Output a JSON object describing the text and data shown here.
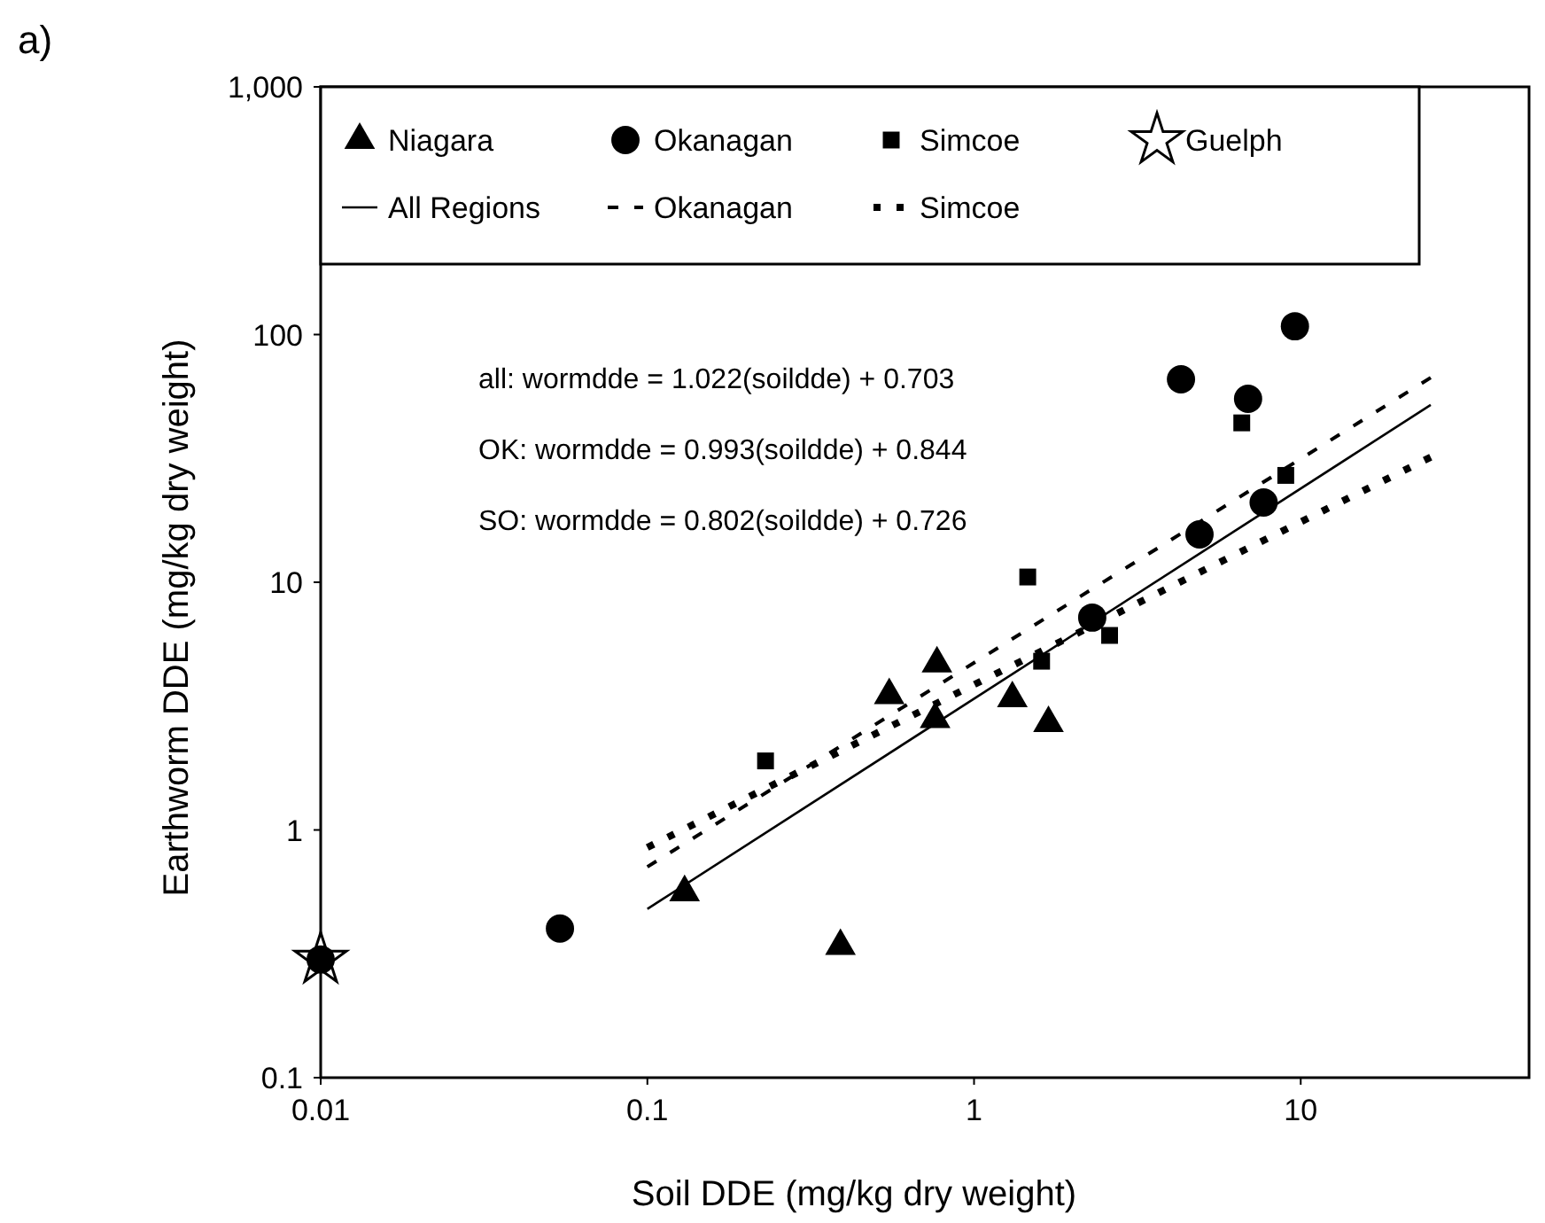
{
  "chart_data": {
    "type": "scatter",
    "title": "a)",
    "xlabel": "Soil DDE (mg/kg dry weight)",
    "ylabel": "Earthworm DDE (mg/kg dry weight)",
    "log": "xy",
    "xlim": [
      0.01,
      50
    ],
    "ylim": [
      0.1,
      1000
    ],
    "xticks": [
      0.01,
      0.1,
      1,
      10
    ],
    "yticks": [
      0.1,
      1,
      10,
      100,
      {
        "value": 1000,
        "label": "1,000"
      }
    ],
    "legend": "top",
    "grid": false,
    "annotations": [
      "all: wormdde = 1.022(soildde) + 0.703",
      "OK: wormdde = 0.993(soildde) + 0.844",
      "SO: wormdde = 0.802(soildde) + 0.726"
    ],
    "series": [
      {
        "name": "Niagara",
        "marker": "triangle",
        "color": "#000000",
        "x": [
          0.13,
          0.39,
          0.55,
          0.77,
          0.76,
          1.31,
          1.69
        ],
        "values": [
          0.56,
          0.34,
          3.5,
          4.7,
          2.8,
          3.4,
          2.7
        ]
      },
      {
        "name": "Okanagan",
        "marker": "circle",
        "color": "#000000",
        "x": [
          0.01,
          0.054,
          2.3,
          4.9,
          7.7,
          4.3,
          6.9,
          9.6
        ],
        "values": [
          0.3,
          0.4,
          7.2,
          15.6,
          21,
          66,
          55,
          108
        ]
      },
      {
        "name": "Simcoe",
        "marker": "square",
        "color": "#000000",
        "x": [
          0.23,
          1.46,
          1.61,
          2.6,
          6.6,
          9.0
        ],
        "values": [
          1.9,
          10.5,
          4.8,
          6.1,
          44,
          27
        ]
      },
      {
        "name": "Guelph",
        "marker": "star",
        "color": "#000000",
        "x": [
          0.01
        ],
        "values": [
          0.3
        ]
      },
      {
        "name": "All Regions",
        "type": "line",
        "line_style": "solid",
        "color": "#000000",
        "x": [
          0.1,
          25
        ],
        "values": [
          0.48,
          52
        ]
      },
      {
        "name": "Okanagan",
        "type": "line",
        "line_style": "dashed",
        "color": "#000000",
        "x": [
          0.1,
          25
        ],
        "values": [
          0.71,
          67
        ]
      },
      {
        "name": "Simcoe",
        "type": "line",
        "line_style": "dotted",
        "color": "#000000",
        "x": [
          0.1,
          25
        ],
        "values": [
          0.85,
          32
        ]
      }
    ]
  }
}
